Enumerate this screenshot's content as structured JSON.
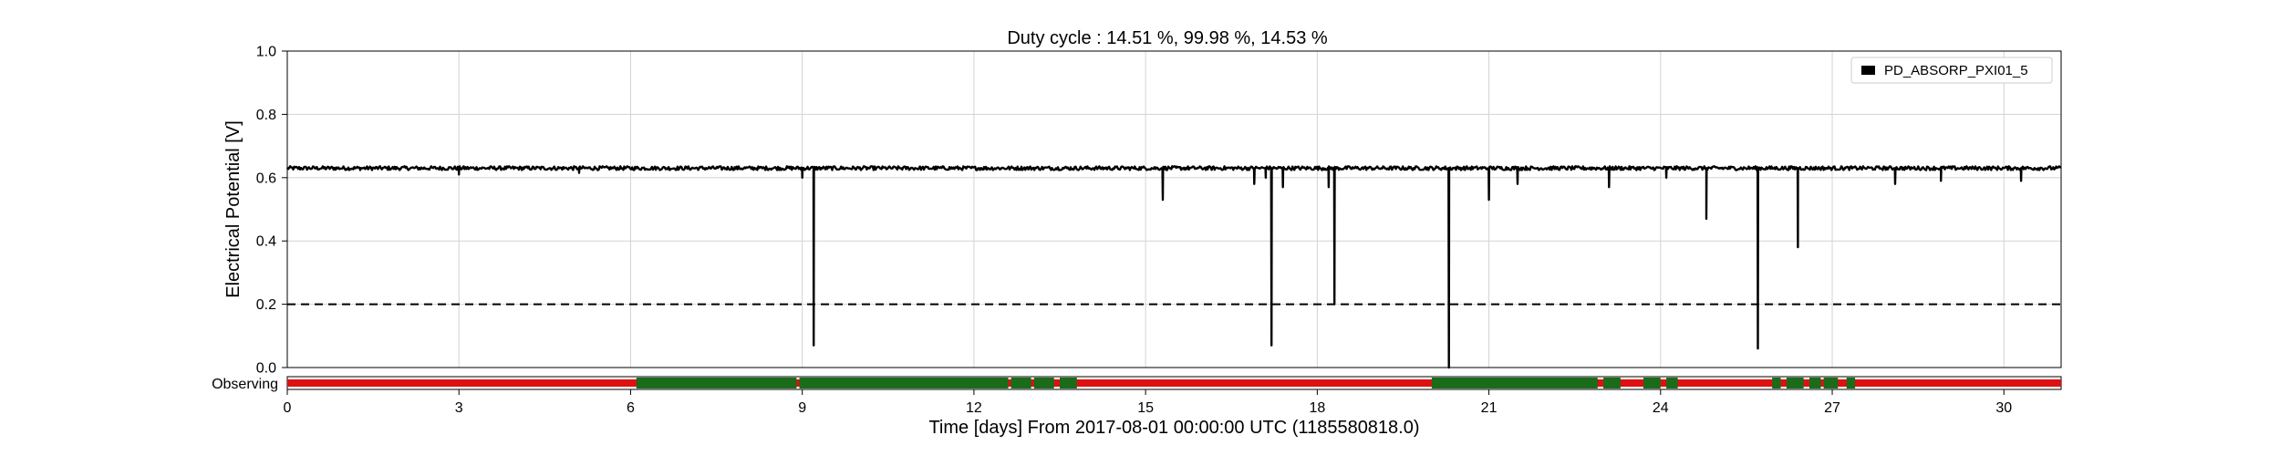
{
  "colors": {
    "series_line": "#000000",
    "grid": "#d3d3d3",
    "threshold": "#000000",
    "segment_observing": "#1a6b1a",
    "segment_not_observing": "#dd1111",
    "legend_border": "#cccccc"
  },
  "chart_data": {
    "type": "line",
    "title": "Duty cycle : 14.51 %, 99.98 %, 14.53 %",
    "xlabel": "Time [days] From 2017-08-01 00:00:00 UTC (1185580818.0)",
    "ylabel": "Electrical Potential [V]",
    "xlim": [
      0,
      31
    ],
    "ylim": [
      0.0,
      1.0
    ],
    "x_ticks": [
      0,
      3,
      6,
      9,
      12,
      15,
      18,
      21,
      24,
      27,
      30
    ],
    "y_ticks": [
      0.0,
      0.2,
      0.4,
      0.6,
      0.8,
      1.0
    ],
    "y_tick_labels": [
      "0.0",
      "0.2",
      "0.4",
      "0.6",
      "0.8",
      "1.0"
    ],
    "grid": true,
    "legend_position": "top-right",
    "series": [
      {
        "name": "PD_ABSORP_PXI01_5",
        "baseline": 0.63,
        "noise": 0.006,
        "dips": [
          {
            "x": 3.0,
            "y": 0.61
          },
          {
            "x": 5.1,
            "y": 0.615
          },
          {
            "x": 9.0,
            "y": 0.6
          },
          {
            "x": 9.2,
            "y": 0.07
          },
          {
            "x": 15.3,
            "y": 0.53
          },
          {
            "x": 16.9,
            "y": 0.58
          },
          {
            "x": 17.1,
            "y": 0.6
          },
          {
            "x": 17.2,
            "y": 0.07
          },
          {
            "x": 17.4,
            "y": 0.57
          },
          {
            "x": 18.2,
            "y": 0.57
          },
          {
            "x": 18.3,
            "y": 0.2
          },
          {
            "x": 20.3,
            "y": 0.0
          },
          {
            "x": 21.0,
            "y": 0.53
          },
          {
            "x": 21.5,
            "y": 0.58
          },
          {
            "x": 23.1,
            "y": 0.57
          },
          {
            "x": 24.1,
            "y": 0.6
          },
          {
            "x": 24.8,
            "y": 0.47
          },
          {
            "x": 25.7,
            "y": 0.06
          },
          {
            "x": 26.4,
            "y": 0.38
          },
          {
            "x": 28.1,
            "y": 0.58
          },
          {
            "x": 28.9,
            "y": 0.59
          },
          {
            "x": 30.3,
            "y": 0.59
          }
        ]
      }
    ],
    "threshold": {
      "y": 0.2,
      "style": "dashed"
    },
    "segments": {
      "label": "Observing",
      "observing_intervals": [
        [
          6.1,
          8.9
        ],
        [
          8.95,
          12.6
        ],
        [
          12.65,
          13.0
        ],
        [
          13.05,
          13.4
        ],
        [
          13.5,
          13.8
        ],
        [
          20.0,
          22.9
        ],
        [
          23.0,
          23.3
        ],
        [
          23.7,
          24.0
        ],
        [
          24.1,
          24.3
        ],
        [
          25.95,
          26.1
        ],
        [
          26.2,
          26.5
        ],
        [
          26.6,
          26.8
        ],
        [
          26.85,
          27.1
        ],
        [
          27.25,
          27.4
        ]
      ]
    }
  }
}
